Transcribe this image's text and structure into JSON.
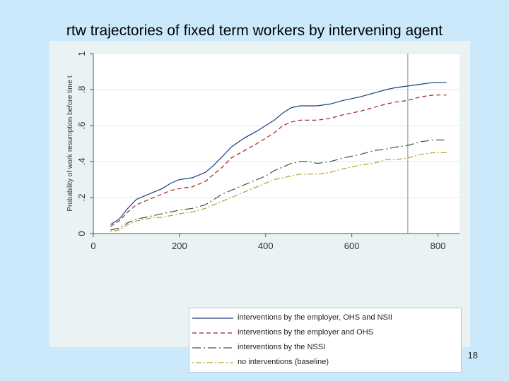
{
  "slide": {
    "title": "rtw trajectories of fixed term workers by intervening agent",
    "page_number": "18"
  },
  "chart_data": {
    "type": "line",
    "title": "",
    "xlabel": "",
    "ylabel": "Probability of work resumption before time t",
    "xlim": [
      0,
      850
    ],
    "ylim": [
      0,
      1
    ],
    "x_ticks": [
      0,
      200,
      400,
      600,
      800
    ],
    "y_ticks": [
      0,
      0.2,
      0.4,
      0.6,
      0.8,
      1
    ],
    "x_tick_labels": [
      "0",
      "200",
      "400",
      "600",
      "800"
    ],
    "y_tick_labels": [
      "0",
      ".2",
      ".4",
      ".6",
      ".8",
      "1"
    ],
    "reference_line_x": 730,
    "grid": true,
    "legend_position": "bottom",
    "series": [
      {
        "name": "interventions by the employer, OHS and NSII",
        "color": "#1a3f7a",
        "dash": "solid",
        "x": [
          40,
          60,
          80,
          100,
          120,
          140,
          160,
          180,
          200,
          230,
          260,
          280,
          300,
          320,
          350,
          380,
          400,
          420,
          440,
          460,
          480,
          500,
          520,
          550,
          580,
          600,
          620,
          650,
          680,
          700,
          730,
          760,
          790,
          820
        ],
        "y": [
          0.05,
          0.08,
          0.14,
          0.19,
          0.21,
          0.23,
          0.25,
          0.28,
          0.3,
          0.31,
          0.34,
          0.38,
          0.43,
          0.48,
          0.53,
          0.57,
          0.6,
          0.63,
          0.67,
          0.7,
          0.71,
          0.71,
          0.71,
          0.72,
          0.74,
          0.75,
          0.76,
          0.78,
          0.8,
          0.81,
          0.82,
          0.83,
          0.84,
          0.84
        ]
      },
      {
        "name": "interventions by the employer and OHS",
        "color": "#9b2020",
        "dash": "6,4",
        "x": [
          40,
          60,
          80,
          100,
          120,
          140,
          160,
          180,
          200,
          230,
          260,
          280,
          300,
          320,
          350,
          380,
          400,
          420,
          440,
          460,
          480,
          500,
          520,
          550,
          580,
          600,
          620,
          650,
          680,
          700,
          730,
          760,
          790,
          820
        ],
        "y": [
          0.04,
          0.07,
          0.12,
          0.16,
          0.18,
          0.2,
          0.22,
          0.24,
          0.25,
          0.26,
          0.29,
          0.33,
          0.37,
          0.42,
          0.46,
          0.5,
          0.53,
          0.56,
          0.6,
          0.62,
          0.63,
          0.63,
          0.63,
          0.64,
          0.66,
          0.67,
          0.68,
          0.7,
          0.72,
          0.73,
          0.74,
          0.76,
          0.77,
          0.77
        ]
      },
      {
        "name": "interventions by the NSSI",
        "color": "#3c5a3c",
        "dash": "12,4,2,4",
        "x": [
          40,
          60,
          80,
          100,
          120,
          140,
          160,
          180,
          200,
          230,
          260,
          280,
          300,
          320,
          350,
          380,
          400,
          420,
          440,
          460,
          480,
          500,
          520,
          550,
          580,
          600,
          620,
          650,
          680,
          700,
          730,
          760,
          790,
          820
        ],
        "y": [
          0.02,
          0.03,
          0.06,
          0.08,
          0.09,
          0.1,
          0.11,
          0.12,
          0.13,
          0.14,
          0.16,
          0.19,
          0.22,
          0.24,
          0.27,
          0.3,
          0.32,
          0.35,
          0.37,
          0.39,
          0.4,
          0.4,
          0.39,
          0.4,
          0.42,
          0.43,
          0.44,
          0.46,
          0.47,
          0.48,
          0.49,
          0.51,
          0.52,
          0.52
        ]
      },
      {
        "name": "no interventions (baseline)",
        "color": "#b5a12a",
        "dash": "2,3,8,3",
        "x": [
          40,
          60,
          80,
          100,
          120,
          140,
          160,
          180,
          200,
          230,
          260,
          280,
          300,
          320,
          350,
          380,
          400,
          420,
          440,
          460,
          480,
          500,
          520,
          550,
          580,
          600,
          620,
          650,
          680,
          700,
          730,
          760,
          790,
          820
        ],
        "y": [
          0.01,
          0.02,
          0.05,
          0.07,
          0.08,
          0.09,
          0.09,
          0.1,
          0.11,
          0.12,
          0.14,
          0.16,
          0.18,
          0.2,
          0.23,
          0.26,
          0.28,
          0.3,
          0.31,
          0.32,
          0.33,
          0.33,
          0.33,
          0.34,
          0.36,
          0.37,
          0.38,
          0.39,
          0.41,
          0.41,
          0.42,
          0.44,
          0.45,
          0.45
        ]
      }
    ]
  }
}
